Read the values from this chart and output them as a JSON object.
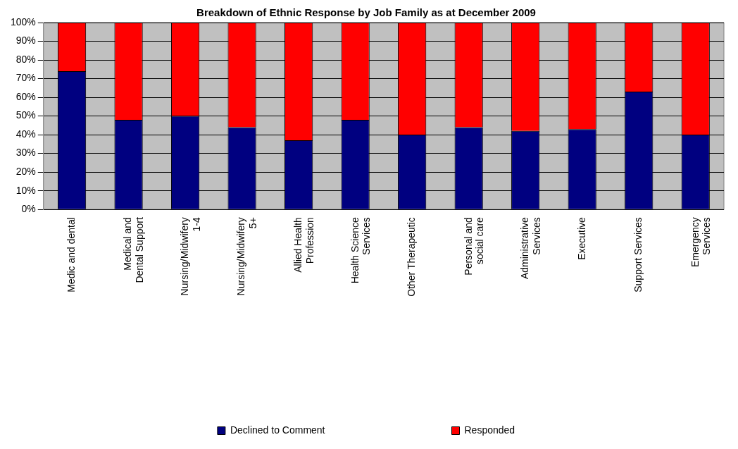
{
  "chart_data": {
    "type": "bar",
    "title": "Breakdown of Ethnic Response by Job Family as at December 2009",
    "stacked": true,
    "categories": [
      "Medic and dental",
      "Medical and\nDental Support",
      "Nursing/Midwifery\n1-4",
      "Nursing/Midwifery\n5+",
      "Allied Health\nProfession",
      "Health Science\nServices",
      "Other Therapeutic",
      "Personal and\nsocial care",
      "Administrative\nServices",
      "Executive",
      "Support Services",
      "Emergency\nServices"
    ],
    "series": [
      {
        "name": "Declined to Comment",
        "color": "#000080",
        "values": [
          74,
          48,
          50,
          44,
          37,
          48,
          40,
          44,
          42,
          43,
          63,
          40
        ]
      },
      {
        "name": "Responded",
        "color": "#ff0000",
        "values": [
          26,
          52,
          50,
          56,
          63,
          52,
          60,
          56,
          58,
          57,
          37,
          60
        ]
      }
    ],
    "ylim": [
      0,
      100
    ],
    "yticks": [
      {
        "value": 0,
        "label": "0%"
      },
      {
        "value": 10,
        "label": "10%"
      },
      {
        "value": 20,
        "label": "20%"
      },
      {
        "value": 30,
        "label": "30%"
      },
      {
        "value": 40,
        "label": "40%"
      },
      {
        "value": 50,
        "label": "50%"
      },
      {
        "value": 60,
        "label": "60%"
      },
      {
        "value": 70,
        "label": "70%"
      },
      {
        "value": 80,
        "label": "80%"
      },
      {
        "value": 90,
        "label": "90%"
      },
      {
        "value": 100,
        "label": "100%"
      }
    ],
    "grid": "y",
    "legend": "bottom"
  }
}
